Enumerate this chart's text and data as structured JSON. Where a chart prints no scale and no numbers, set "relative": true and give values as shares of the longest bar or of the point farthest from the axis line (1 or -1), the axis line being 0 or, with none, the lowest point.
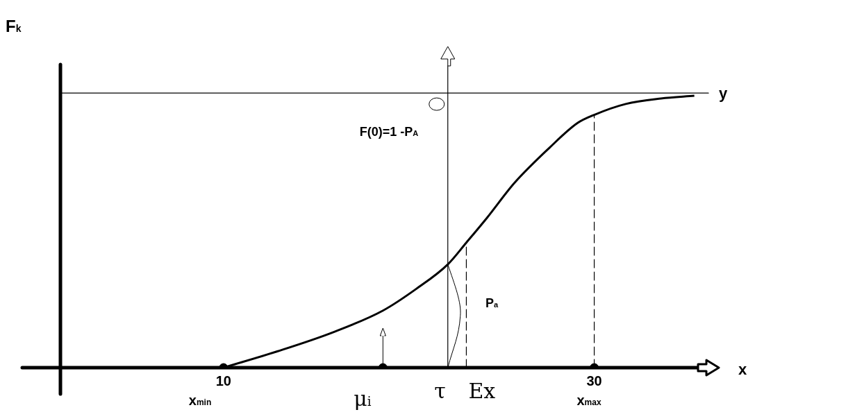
{
  "chart_data": {
    "type": "line",
    "relative": true,
    "xlabel": "x",
    "ylabel": "F$_{k}$",
    "xlim": [
      1.2,
      35.6
    ],
    "xticks": [
      10,
      30
    ],
    "series": [
      {
        "color": "#000000",
        "x": [
          10,
          12.9,
          15.9,
          18.6,
          20.4,
          22.1,
          23.1,
          24.2,
          25.7,
          27.6,
          29.1,
          30,
          31.7,
          33.6,
          35.4
        ],
        "values": [
          0,
          0.06,
          0.13,
          0.21,
          0.29,
          0.38,
          0.46,
          0.55,
          0.68,
          0.81,
          0.9,
          0.93,
          0.97,
          0.99,
          1
        ]
      },
      {
        "type": "scatter",
        "color": "#000000",
        "marker": "circle",
        "x": [
          10,
          18.6,
          30
        ],
        "values": [
          0,
          0,
          0
        ]
      }
    ],
    "ref_lines": [
      {
        "axis": "y",
        "value": 1.01,
        "label": "y"
      },
      {
        "axis": "x",
        "value": 22.1,
        "label": "τ"
      },
      {
        "axis": "x",
        "value": 23.1,
        "label": "Ex",
        "line_style": "dashed"
      },
      {
        "axis": "x",
        "value": 30,
        "line_style": "dashed"
      }
    ],
    "annotations": [
      "x$_{min}$",
      "x$_{max}$",
      "μ$_{i}$",
      "F(0)=1 -P$_{A}$",
      "P$_{a}$"
    ]
  }
}
